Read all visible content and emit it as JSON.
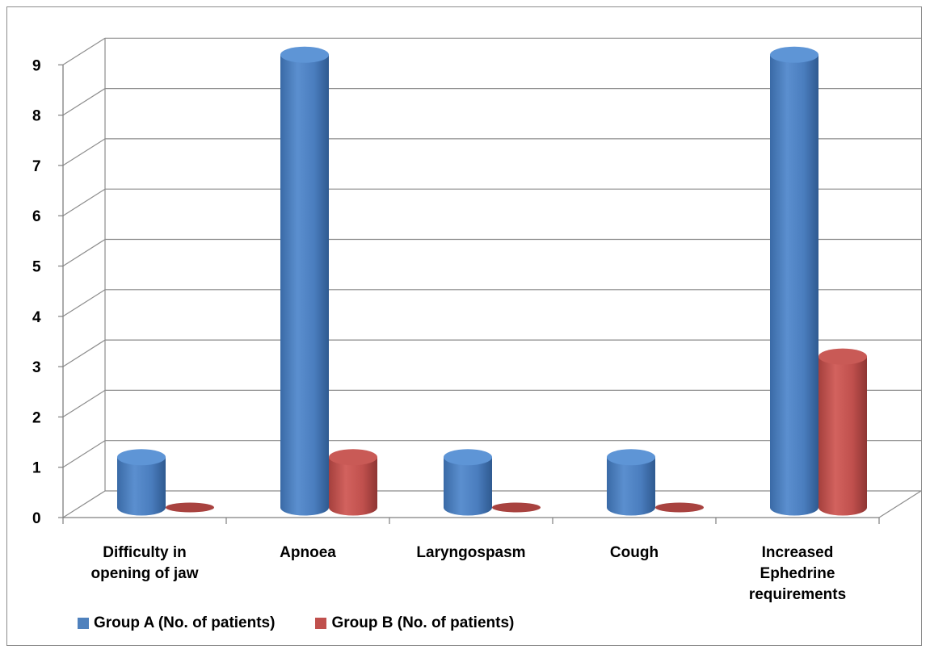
{
  "chart_data": {
    "type": "bar",
    "style": "3d-cylinder",
    "categories": [
      [
        "Difficulty in",
        "opening of jaw"
      ],
      [
        "Apnoea"
      ],
      [
        "Laryngospasm"
      ],
      [
        "Cough"
      ],
      [
        "Increased",
        "Ephedrine",
        "requirements"
      ]
    ],
    "series": [
      {
        "name": "Group A (No. of patients)",
        "color": "#4F81BD",
        "values": [
          1,
          9,
          1,
          1,
          9
        ]
      },
      {
        "name": "Group B (No. of patients)",
        "color": "#C0504D",
        "values": [
          0,
          1,
          0,
          0,
          3
        ]
      }
    ],
    "ylim": [
      0,
      9
    ],
    "yticks": [
      0,
      1,
      2,
      3,
      4,
      5,
      6,
      7,
      8,
      9
    ],
    "grid": true,
    "legend_position": "bottom-left"
  }
}
